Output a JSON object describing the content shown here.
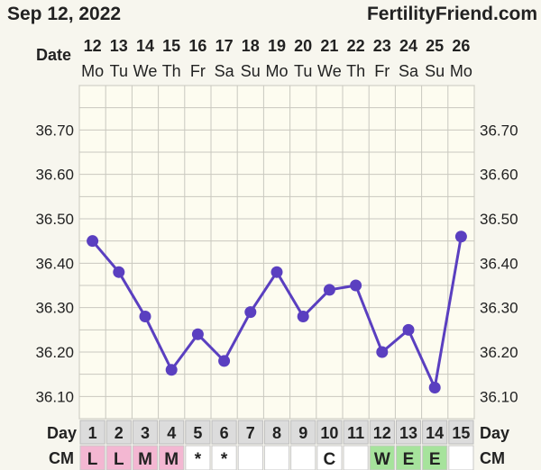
{
  "header": {
    "date": "Sep 12, 2022",
    "brand": "FertilityFriend.com"
  },
  "labels": {
    "date_label": "Date",
    "day_label": "Day",
    "cm_label": "CM"
  },
  "colors": {
    "background": "#f7f6ee",
    "plot_bg": "#fdfcf0",
    "grid": "#c9c8bf",
    "line": "#5a3fc0",
    "point": "#5a3fc0",
    "cm_L": "#f3b7d2",
    "cm_M": "#f3b7d2",
    "cm_W": "#a6e39c",
    "cm_E": "#a6e39c",
    "day_cell": "#dcdcdc"
  },
  "chart_data": {
    "type": "line",
    "title": "",
    "xlabel": "Date",
    "ylabel": "",
    "ylim": [
      36.05,
      36.8
    ],
    "grid": true,
    "yticks": [
      "36.70",
      "36.60",
      "36.50",
      "36.40",
      "36.30",
      "36.20",
      "36.10"
    ],
    "dates": [
      "12",
      "13",
      "14",
      "15",
      "16",
      "17",
      "18",
      "19",
      "20",
      "21",
      "22",
      "23",
      "24",
      "25",
      "26"
    ],
    "weekdays": [
      "Mo",
      "Tu",
      "We",
      "Th",
      "Fr",
      "Sa",
      "Su",
      "Mo",
      "Tu",
      "We",
      "Th",
      "Fr",
      "Sa",
      "Su",
      "Mo"
    ],
    "cycle_days": [
      "1",
      "2",
      "3",
      "4",
      "5",
      "6",
      "7",
      "8",
      "9",
      "10",
      "11",
      "12",
      "13",
      "14",
      "15"
    ],
    "cm": [
      "L",
      "L",
      "M",
      "M",
      "*",
      "*",
      "",
      "",
      "",
      "C",
      "",
      "W",
      "E",
      "E",
      ""
    ],
    "series": [
      {
        "values": [
          36.45,
          36.38,
          36.28,
          36.16,
          36.24,
          36.18,
          36.29,
          36.38,
          36.28,
          36.34,
          36.35,
          36.2,
          36.25,
          36.12,
          36.46
        ]
      }
    ]
  }
}
